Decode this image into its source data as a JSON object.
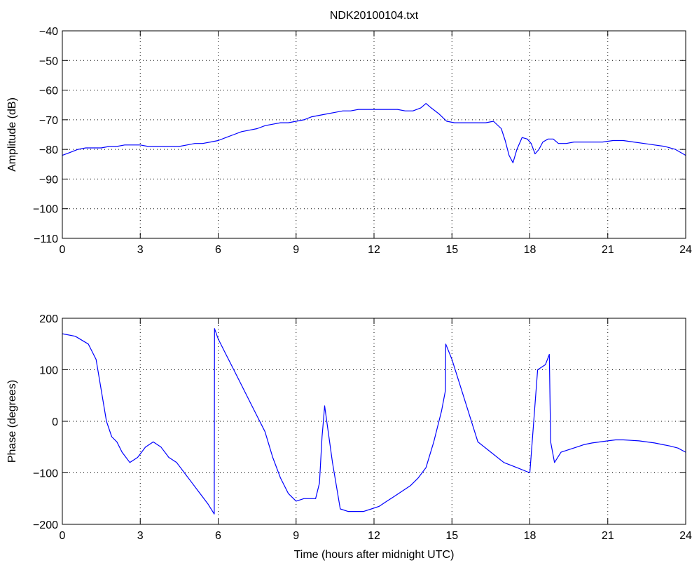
{
  "colors": {
    "series": "#0000ff",
    "axis": "#000000",
    "grid": "#000000",
    "background": "#ffffff"
  },
  "chart_data": [
    {
      "type": "line",
      "title": "NDK20100104.txt",
      "xlabel": "",
      "ylabel": "Amplitude (dB)",
      "xlim": [
        0,
        24
      ],
      "ylim": [
        -110,
        -40
      ],
      "xticks": [
        0,
        3,
        6,
        9,
        12,
        15,
        18,
        21,
        24
      ],
      "yticks": [
        -40,
        -50,
        -60,
        -70,
        -80,
        -90,
        -100,
        -110
      ],
      "xtick_labels": [
        "0",
        "3",
        "6",
        "9",
        "12",
        "15",
        "18",
        "21",
        "24"
      ],
      "ytick_labels": [
        "−40",
        "−50",
        "−60",
        "−70",
        "−80",
        "−90",
        "−100",
        "−110"
      ],
      "grid": true,
      "series": [
        {
          "x": [
            0,
            0.3,
            0.6,
            0.9,
            1.2,
            1.5,
            1.8,
            2.1,
            2.4,
            2.7,
            3.0,
            3.3,
            3.6,
            3.9,
            4.2,
            4.5,
            4.8,
            5.1,
            5.4,
            5.7,
            6.0,
            6.3,
            6.6,
            6.9,
            7.2,
            7.5,
            7.8,
            8.1,
            8.4,
            8.7,
            9.0,
            9.3,
            9.6,
            9.9,
            10.2,
            10.5,
            10.8,
            11.1,
            11.4,
            11.7,
            12.0,
            12.3,
            12.6,
            12.9,
            13.2,
            13.5,
            13.8,
            14.0,
            14.2,
            14.5,
            14.8,
            15.1,
            15.4,
            15.7,
            16.0,
            16.3,
            16.6,
            16.9,
            17.05,
            17.2,
            17.35,
            17.5,
            17.7,
            17.9,
            18.05,
            18.2,
            18.35,
            18.5,
            18.7,
            18.9,
            19.1,
            19.4,
            19.7,
            20.0,
            20.4,
            20.8,
            21.2,
            21.6,
            22.0,
            22.4,
            22.8,
            23.2,
            23.6,
            24.0
          ],
          "values": [
            -82,
            -81,
            -80,
            -79.5,
            -79.5,
            -79.5,
            -79,
            -79,
            -78.5,
            -78.5,
            -78.5,
            -79,
            -79,
            -79,
            -79,
            -79,
            -78.5,
            -78,
            -78,
            -77.5,
            -77,
            -76,
            -75,
            -74,
            -73.5,
            -73,
            -72,
            -71.5,
            -71,
            -71,
            -70.5,
            -70,
            -69,
            -68.5,
            -68,
            -67.5,
            -67,
            -67,
            -66.5,
            -66.5,
            -66.5,
            -66.5,
            -66.5,
            -66.5,
            -67,
            -67,
            -66,
            -64.5,
            -66,
            -68,
            -70.5,
            -71,
            -71,
            -71,
            -71,
            -71,
            -70.5,
            -73,
            -77,
            -82,
            -84.5,
            -80,
            -76,
            -76.5,
            -78,
            -81.5,
            -80,
            -77.5,
            -76.5,
            -76.5,
            -78,
            -78,
            -77.5,
            -77.5,
            -77.5,
            -77.5,
            -77,
            -77,
            -77.5,
            -78,
            -78.5,
            -79,
            -80,
            -82
          ]
        }
      ]
    },
    {
      "type": "line",
      "title": "",
      "xlabel": "Time (hours after midnight UTC)",
      "ylabel": "Phase (degrees)",
      "xlim": [
        0,
        24
      ],
      "ylim": [
        -200,
        200
      ],
      "xticks": [
        0,
        3,
        6,
        9,
        12,
        15,
        18,
        21,
        24
      ],
      "yticks": [
        200,
        100,
        0,
        -100,
        -200
      ],
      "xtick_labels": [
        "0",
        "3",
        "6",
        "9",
        "12",
        "15",
        "18",
        "21",
        "24"
      ],
      "ytick_labels": [
        "200",
        "100",
        "0",
        "−100",
        "−200"
      ],
      "grid": true,
      "series": [
        {
          "x": [
            0,
            0.5,
            1.0,
            1.3,
            1.5,
            1.7,
            1.9,
            2.1,
            2.3,
            2.6,
            2.9,
            3.2,
            3.5,
            3.8,
            4.1,
            4.4,
            4.7,
            5.0,
            5.3,
            5.6,
            5.85,
            5.86,
            6.0,
            6.3,
            6.6,
            6.9,
            7.2,
            7.5,
            7.8,
            8.1,
            8.4,
            8.7,
            9.0,
            9.3,
            9.6,
            9.75,
            9.9,
            10.0,
            10.05,
            10.1,
            10.4,
            10.7,
            11.0,
            11.3,
            11.6,
            11.9,
            12.2,
            12.5,
            12.8,
            13.1,
            13.4,
            13.7,
            14.0,
            14.3,
            14.6,
            14.75,
            14.76,
            15.0,
            15.5,
            16.0,
            16.5,
            17.0,
            17.5,
            18.0,
            18.3,
            18.6,
            18.75,
            18.8,
            18.95,
            19.2,
            19.5,
            19.8,
            20.1,
            20.4,
            20.7,
            21.0,
            21.3,
            21.6,
            21.9,
            22.2,
            22.5,
            22.8,
            23.1,
            23.4,
            23.7,
            24.0
          ],
          "values": [
            170,
            165,
            150,
            120,
            60,
            0,
            -30,
            -40,
            -60,
            -80,
            -70,
            -50,
            -40,
            -50,
            -70,
            -80,
            -100,
            -120,
            -140,
            -160,
            -180,
            180,
            160,
            130,
            100,
            70,
            40,
            10,
            -20,
            -70,
            -110,
            -140,
            -155,
            -150,
            -150,
            -150,
            -120,
            -30,
            0,
            30,
            -80,
            -170,
            -175,
            -175,
            -175,
            -170,
            -165,
            -155,
            -145,
            -135,
            -125,
            -110,
            -90,
            -40,
            20,
            60,
            150,
            120,
            40,
            -40,
            -60,
            -80,
            -90,
            -100,
            100,
            110,
            130,
            -40,
            -80,
            -60,
            -55,
            -50,
            -45,
            -42,
            -40,
            -38,
            -36,
            -36,
            -37,
            -38,
            -40,
            -42,
            -45,
            -48,
            -52,
            -60
          ]
        }
      ]
    }
  ]
}
